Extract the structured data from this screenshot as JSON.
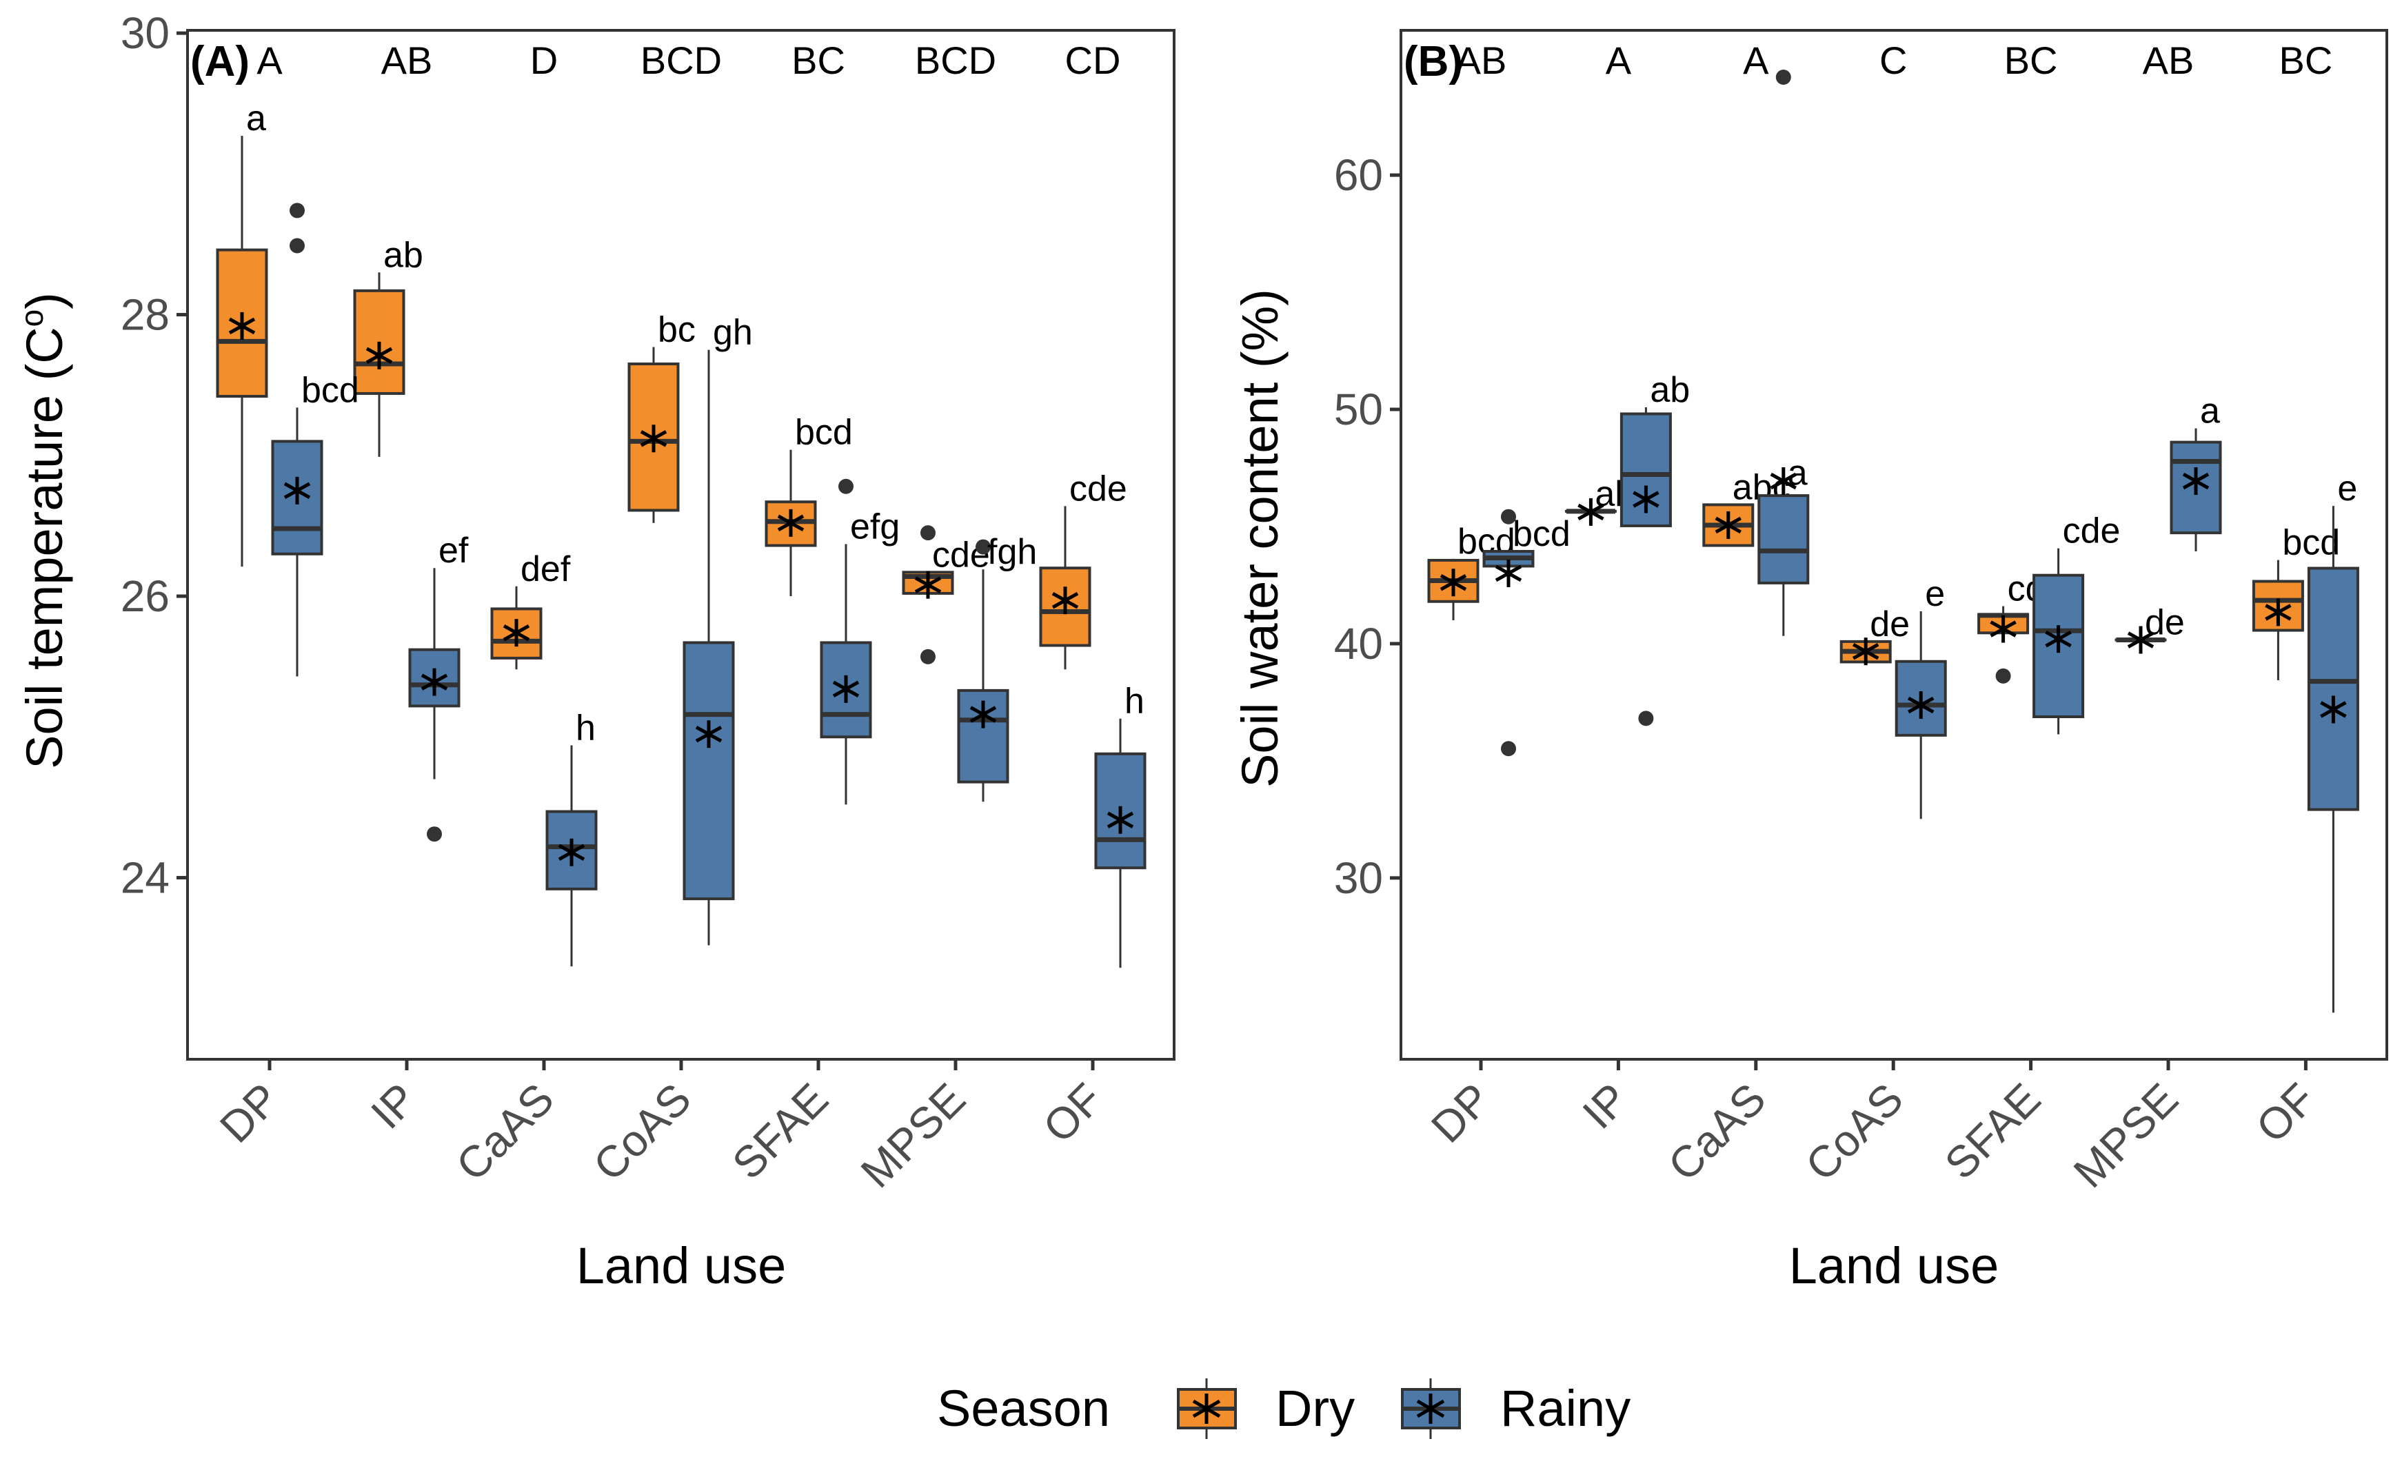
{
  "colors": {
    "Dry": "#F28E2B",
    "Rainy": "#4E79A7",
    "outline": "#333333",
    "panel_border": "#333333"
  },
  "legend": {
    "title": "Season",
    "entries": [
      "Dry",
      "Rainy"
    ],
    "position": "bottom"
  },
  "chart_data": [
    {
      "type": "box",
      "panel_tag": "(A)",
      "title": "",
      "xlabel": "Land use",
      "ylabel": "Soil temperature (C",
      "ylabel_superscript": "o",
      "ylabel_suffix": ")",
      "categories": [
        "DP",
        "IP",
        "CaAS",
        "CoAS",
        "SFAE",
        "MPSE",
        "OF"
      ],
      "ylim": [
        22.71,
        30.02
      ],
      "yticks": [
        24,
        26,
        28,
        30
      ],
      "grid": false,
      "group_letters": [
        "A",
        "AB",
        "D",
        "BCD",
        "BC",
        "BCD",
        "CD"
      ],
      "series": [
        {
          "name": "Dry",
          "boxes": [
            {
              "min": 26.21,
              "q1": 27.42,
              "median": 27.81,
              "q3": 28.46,
              "max": 29.27,
              "mean": 27.92,
              "outliers": [],
              "letter": "a"
            },
            {
              "min": 26.99,
              "q1": 27.44,
              "median": 27.65,
              "q3": 28.17,
              "max": 28.3,
              "mean": 27.71,
              "outliers": [],
              "letter": "ab"
            },
            {
              "min": 25.48,
              "q1": 25.56,
              "median": 25.68,
              "q3": 25.91,
              "max": 26.07,
              "mean": 25.74,
              "outliers": [],
              "letter": "def"
            },
            {
              "min": 26.52,
              "q1": 26.61,
              "median": 27.1,
              "q3": 27.65,
              "max": 27.77,
              "mean": 27.12,
              "outliers": [],
              "letter": "bc"
            },
            {
              "min": 26.0,
              "q1": 26.36,
              "median": 26.53,
              "q3": 26.67,
              "max": 27.04,
              "mean": 26.52,
              "outliers": [],
              "letter": "bcd"
            },
            {
              "min": 26.02,
              "q1": 26.02,
              "median": 26.14,
              "q3": 26.17,
              "max": 26.17,
              "mean": 26.08,
              "outliers": [
                26.45,
                25.57
              ],
              "letter": "cde"
            },
            {
              "min": 25.48,
              "q1": 25.65,
              "median": 25.89,
              "q3": 26.2,
              "max": 26.64,
              "mean": 25.97,
              "outliers": [],
              "letter": "cde"
            }
          ]
        },
        {
          "name": "Rainy",
          "boxes": [
            {
              "min": 25.43,
              "q1": 26.3,
              "median": 26.48,
              "q3": 27.1,
              "max": 27.34,
              "mean": 26.75,
              "outliers": [
                28.74,
                28.49
              ],
              "letter": "bcd"
            },
            {
              "min": 24.7,
              "q1": 25.22,
              "median": 25.37,
              "q3": 25.62,
              "max": 26.2,
              "mean": 25.39,
              "outliers": [
                24.31
              ],
              "letter": "ef"
            },
            {
              "min": 23.37,
              "q1": 23.92,
              "median": 24.22,
              "q3": 24.47,
              "max": 24.94,
              "mean": 24.18,
              "outliers": [],
              "letter": "h"
            },
            {
              "min": 23.52,
              "q1": 23.85,
              "median": 25.16,
              "q3": 25.67,
              "max": 27.75,
              "mean": 25.02,
              "outliers": [],
              "letter": "gh"
            },
            {
              "min": 24.52,
              "q1": 25.0,
              "median": 25.16,
              "q3": 25.67,
              "max": 26.37,
              "mean": 25.34,
              "outliers": [
                26.78
              ],
              "letter": "efg"
            },
            {
              "min": 24.54,
              "q1": 24.68,
              "median": 25.12,
              "q3": 25.33,
              "max": 26.19,
              "mean": 25.16,
              "outliers": [
                26.35
              ],
              "letter": "fgh"
            },
            {
              "min": 23.36,
              "q1": 24.07,
              "median": 24.27,
              "q3": 24.88,
              "max": 25.13,
              "mean": 24.41,
              "outliers": [],
              "letter": "h"
            }
          ]
        }
      ]
    },
    {
      "type": "box",
      "panel_tag": "(B)",
      "title": "",
      "xlabel": "Land use",
      "ylabel": "Soil water content (%)",
      "categories": [
        "DP",
        "IP",
        "CaAS",
        "CoAS",
        "SFAE",
        "MPSE",
        "OF"
      ],
      "ylim": [
        22.26,
        66.18
      ],
      "yticks": [
        30,
        40,
        50,
        60
      ],
      "grid": false,
      "group_letters": [
        "AB",
        "A",
        "A",
        "C",
        "BC",
        "AB",
        "BC"
      ],
      "series": [
        {
          "name": "Dry",
          "boxes": [
            {
              "min": 41.0,
              "q1": 41.8,
              "median": 42.69,
              "q3": 43.56,
              "max": 43.62,
              "mean": 42.61,
              "outliers": [],
              "letter": "bcd"
            },
            {
              "min": 45.65,
              "q1": 45.65,
              "median": 45.65,
              "q3": 45.65,
              "max": 45.65,
              "mean": 45.62,
              "outliers": [],
              "letter": "ab"
            },
            {
              "min": 44.19,
              "q1": 44.19,
              "median": 45.06,
              "q3": 45.93,
              "max": 45.93,
              "mean": 45.06,
              "outliers": [],
              "letter": "abc"
            },
            {
              "min": 39.22,
              "q1": 39.22,
              "median": 39.67,
              "q3": 40.09,
              "max": 40.09,
              "mean": 39.67,
              "outliers": [],
              "letter": "de"
            },
            {
              "min": 40.46,
              "q1": 40.46,
              "median": 41.21,
              "q3": 41.25,
              "max": 41.6,
              "mean": 40.63,
              "outliers": [
                38.62
              ],
              "letter": "cde"
            },
            {
              "min": 40.16,
              "q1": 40.16,
              "median": 40.16,
              "q3": 40.16,
              "max": 40.16,
              "mean": 40.16,
              "outliers": [],
              "letter": "de"
            },
            {
              "min": 38.44,
              "q1": 40.57,
              "median": 41.85,
              "q3": 42.66,
              "max": 43.57,
              "mean": 41.34,
              "outliers": [],
              "letter": "bcd"
            }
          ]
        },
        {
          "name": "Rainy",
          "boxes": [
            {
              "min": 43.31,
              "q1": 43.31,
              "median": 43.66,
              "q3": 43.94,
              "max": 43.94,
              "mean": 43.0,
              "outliers": [
                45.42,
                35.52
              ],
              "letter": "bcd"
            },
            {
              "min": 45.03,
              "q1": 45.03,
              "median": 47.22,
              "q3": 49.81,
              "max": 50.09,
              "mean": 46.16,
              "outliers": [
                36.81
              ],
              "letter": "ab"
            },
            {
              "min": 40.33,
              "q1": 42.59,
              "median": 43.96,
              "q3": 46.32,
              "max": 46.55,
              "mean": 46.94,
              "outliers": [
                64.18
              ],
              "letter": "a"
            },
            {
              "min": 32.52,
              "q1": 36.09,
              "median": 37.38,
              "q3": 39.24,
              "max": 41.38,
              "mean": 37.38,
              "outliers": [],
              "letter": "e"
            },
            {
              "min": 36.13,
              "q1": 36.88,
              "median": 40.55,
              "q3": 42.92,
              "max": 44.07,
              "mean": 40.2,
              "outliers": [],
              "letter": "cde"
            },
            {
              "min": 43.94,
              "q1": 44.73,
              "median": 47.78,
              "q3": 48.6,
              "max": 49.19,
              "mean": 46.94,
              "outliers": [],
              "letter": "a"
            },
            {
              "min": 24.25,
              "q1": 32.92,
              "median": 38.39,
              "q3": 43.22,
              "max": 45.88,
              "mean": 37.19,
              "outliers": [],
              "letter": "e"
            }
          ]
        }
      ]
    }
  ]
}
